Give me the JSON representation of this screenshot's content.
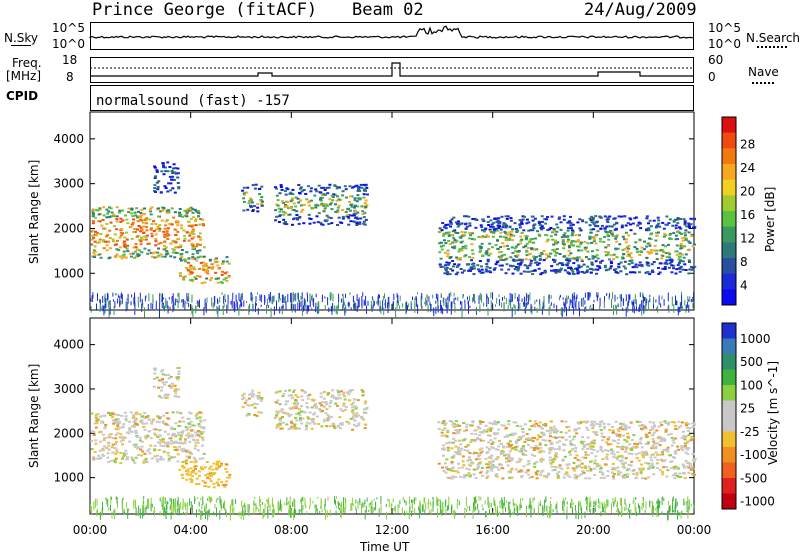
{
  "header": {
    "station": "Prince George (fitACF)",
    "beam": "Beam 02",
    "date": "24/Aug/2009"
  },
  "noise_panel": {
    "left_label": "N.Sky",
    "right_label": "N.Search",
    "left_ticks": [
      "10^5",
      "10^0"
    ],
    "right_ticks": [
      "10^5",
      "10^0"
    ]
  },
  "freq_panel": {
    "left_label_1": "Freq.",
    "left_label_2": "[MHz]",
    "right_label": "Nave",
    "left_ticks": [
      "18",
      "8"
    ],
    "right_ticks": [
      "60",
      "0"
    ]
  },
  "cpid_panel": {
    "label": "CPID",
    "text": "normalsound (fast) -157"
  },
  "chart_data": [
    {
      "type": "heatmap",
      "name": "Power",
      "ylabel": "Slant Range [km]",
      "yticks": [
        1000,
        2000,
        3000,
        4000
      ],
      "ylim": [
        180,
        4600
      ],
      "colorbar_label": "Power [dB]",
      "colorbar_ticks": [
        "28",
        "24",
        "20",
        "16",
        "12",
        "8",
        "4"
      ],
      "colorbar_colors": [
        "#dd1010",
        "#f04a10",
        "#f07a10",
        "#f8a820",
        "#f0d020",
        "#a0cc30",
        "#5cc040",
        "#3a9860",
        "#2c7a78",
        "#284fa0",
        "#1b2ad8",
        "#0a0aee"
      ],
      "bands": [
        {
          "start": 0.0,
          "end": 4.5,
          "range_lo": 1350,
          "range_hi": 2500,
          "level": "high"
        },
        {
          "start": 2.5,
          "end": 3.5,
          "range_lo": 2800,
          "range_hi": 3500,
          "level": "low"
        },
        {
          "start": 3.5,
          "end": 5.5,
          "range_lo": 800,
          "range_hi": 1400,
          "level": "high"
        },
        {
          "start": 6.0,
          "end": 6.8,
          "range_lo": 2400,
          "range_hi": 3000,
          "level": "mid"
        },
        {
          "start": 7.3,
          "end": 11.0,
          "range_lo": 2100,
          "range_hi": 3000,
          "level": "mid"
        },
        {
          "start": 13.8,
          "end": 24.0,
          "range_lo": 1000,
          "range_hi": 2300,
          "level": "mid"
        }
      ]
    },
    {
      "type": "heatmap",
      "name": "Velocity",
      "ylabel": "Slant Range [km]",
      "yticks": [
        1000,
        2000,
        3000,
        4000
      ],
      "ylim": [
        180,
        4600
      ],
      "colorbar_label": "Velocity [m s^-1]",
      "colorbar_ticks": [
        "1000",
        "500",
        "100",
        "25",
        "-25",
        "-100",
        "-500",
        "-1000"
      ],
      "colorbar_colors": [
        "#2030d0",
        "#3a7ab8",
        "#2e8f6a",
        "#3fb23f",
        "#8ad040",
        "#c8c8c8",
        "#c8c8c8",
        "#f0c030",
        "#f09020",
        "#f06020",
        "#e02020",
        "#c00010"
      ]
    }
  ],
  "time_axis": {
    "label": "Time UT",
    "ticks": [
      "00:00",
      "04:00",
      "08:00",
      "12:00",
      "16:00",
      "20:00",
      "00:00"
    ]
  }
}
